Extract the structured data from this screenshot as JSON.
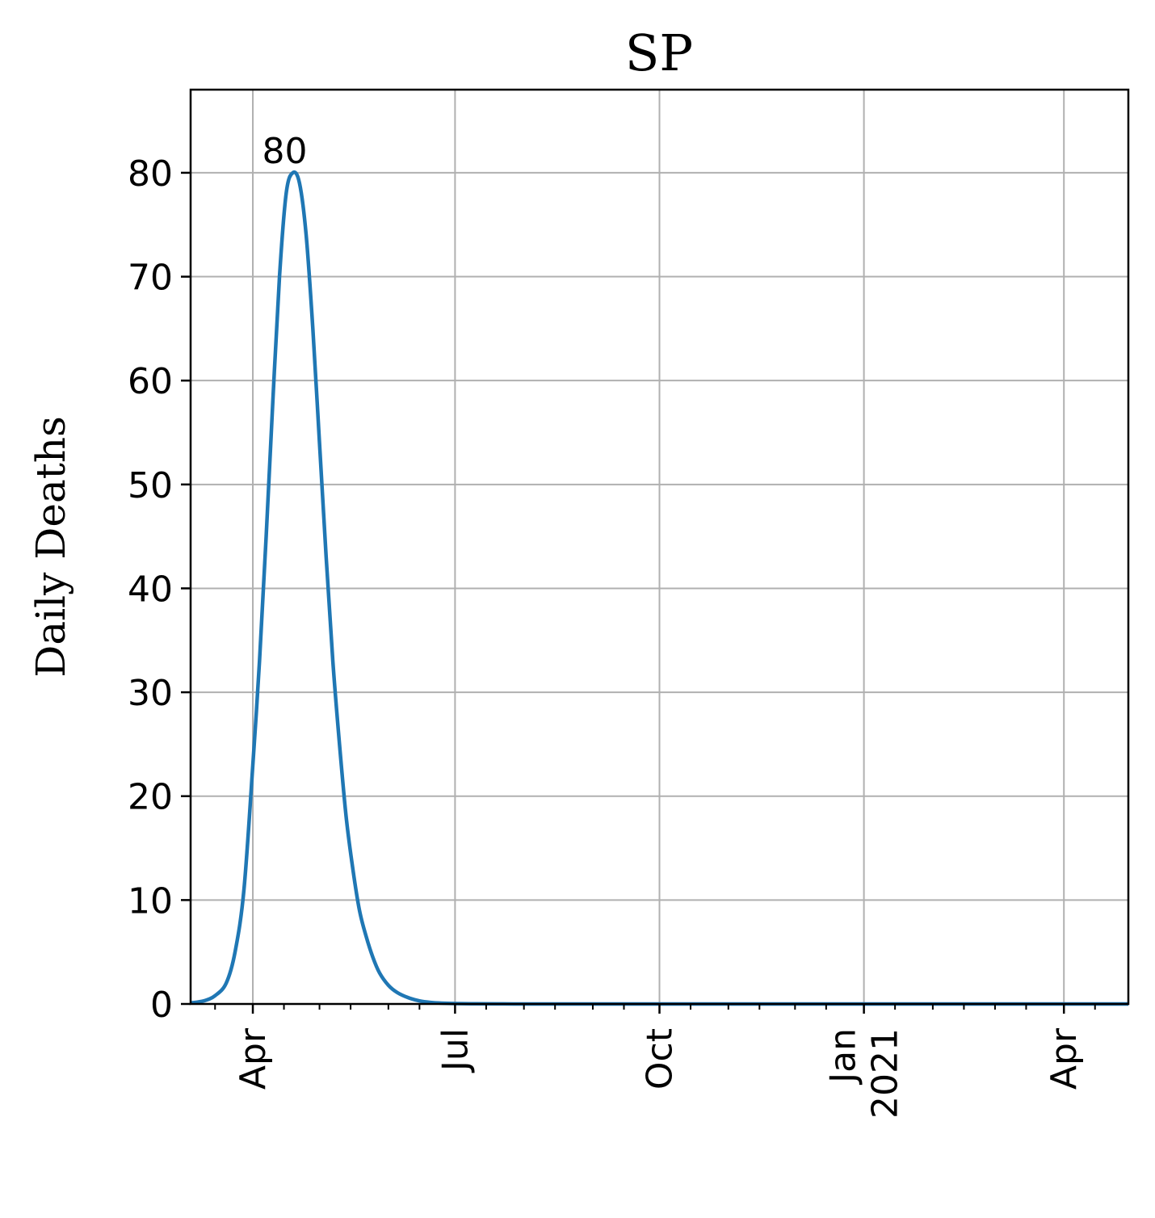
{
  "chart_data": {
    "type": "line",
    "title": "SP",
    "xlabel": "",
    "ylabel": "Daily Deaths",
    "xlim": [
      "2020-03-04",
      "2021-04-30"
    ],
    "ylim": [
      0,
      88
    ],
    "grid": true,
    "legend": false,
    "y_ticks": [
      0,
      10,
      20,
      30,
      40,
      50,
      60,
      70,
      80
    ],
    "x_ticks": [
      {
        "date": "2020-04-01",
        "label": "Apr"
      },
      {
        "date": "2020-07-01",
        "label": "Jul"
      },
      {
        "date": "2020-10-01",
        "label": "Oct"
      },
      {
        "date": "2021-01-01",
        "label": "Jan\n2021"
      },
      {
        "date": "2021-04-01",
        "label": "Apr"
      }
    ],
    "series": [
      {
        "color": "#1f77b4",
        "x": [
          "2020-03-04",
          "2020-03-10",
          "2020-03-15",
          "2020-03-20",
          "2020-03-24",
          "2020-03-28",
          "2020-04-01",
          "2020-04-04",
          "2020-04-07",
          "2020-04-10",
          "2020-04-13",
          "2020-04-16",
          "2020-04-19",
          "2020-04-22",
          "2020-04-25",
          "2020-04-28",
          "2020-05-01",
          "2020-05-04",
          "2020-05-07",
          "2020-05-10",
          "2020-05-13",
          "2020-05-16",
          "2020-05-19",
          "2020-05-22",
          "2020-05-25",
          "2020-05-28",
          "2020-06-01",
          "2020-06-05",
          "2020-06-10",
          "2020-06-15",
          "2020-06-20",
          "2020-06-25",
          "2020-07-01",
          "2020-07-10",
          "2020-07-20",
          "2020-08-01",
          "2020-09-01",
          "2020-10-01",
          "2020-11-01",
          "2020-12-01",
          "2021-01-01",
          "2021-02-01",
          "2021-03-01",
          "2021-04-01",
          "2021-04-30"
        ],
        "y": [
          0.1,
          0.3,
          0.8,
          2,
          5,
          11,
          23,
          33,
          45,
          58,
          70,
          78,
          80,
          79,
          74,
          65,
          54,
          43,
          33,
          25,
          18,
          13,
          9,
          6.5,
          4.5,
          3,
          1.8,
          1.1,
          0.6,
          0.3,
          0.15,
          0.08,
          0.04,
          0.02,
          0.01,
          0,
          0,
          0,
          0,
          0,
          0,
          0,
          0,
          0,
          0
        ]
      }
    ],
    "annotations": [
      {
        "text": "80",
        "x": "2020-04-19",
        "y": 80
      }
    ]
  }
}
